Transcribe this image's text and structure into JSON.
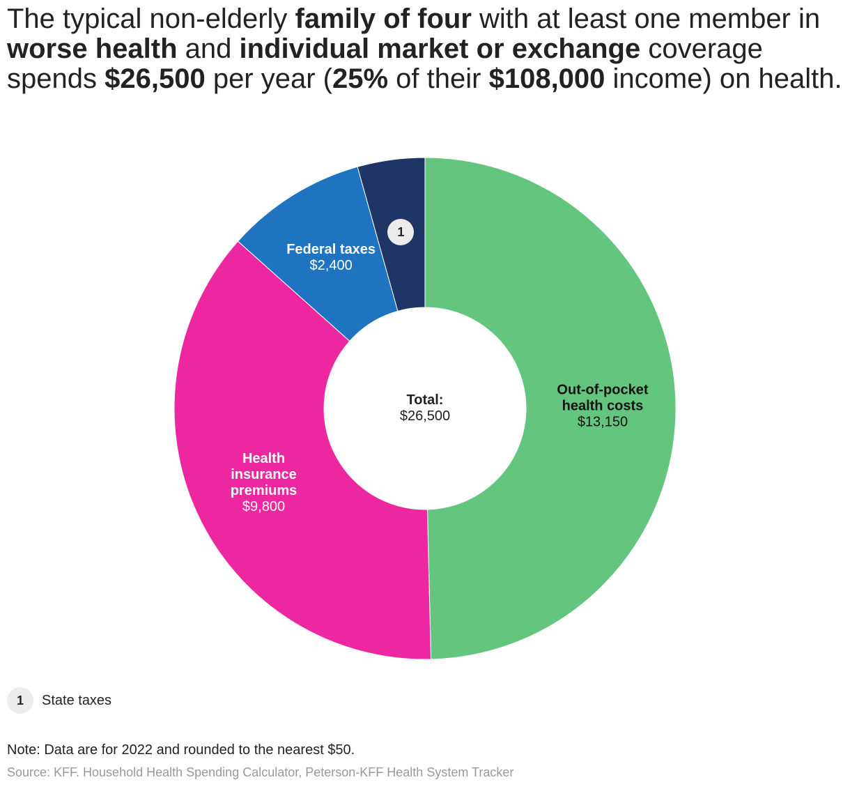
{
  "chart_data": {
    "type": "donut",
    "title": [
      {
        "text": "The typical non-elderly ",
        "bold": false
      },
      {
        "text": "family of four",
        "bold": true
      },
      {
        "text": " with at least one member in ",
        "bold": false
      },
      {
        "text": "worse health",
        "bold": true
      },
      {
        "text": " and ",
        "bold": false
      },
      {
        "text": "individual market or exchange",
        "bold": true
      },
      {
        "text": " coverage spends ",
        "bold": false
      },
      {
        "text": "$26,500",
        "bold": true
      },
      {
        "text": " per year (",
        "bold": false
      },
      {
        "text": "25%",
        "bold": true
      },
      {
        "text": " of their ",
        "bold": false
      },
      {
        "text": "$108,000",
        "bold": true
      },
      {
        "text": " income) on health.",
        "bold": false
      }
    ],
    "categories": [
      "Out-of-pocket health costs",
      "Health insurance premiums",
      "Federal taxes",
      "State taxes"
    ],
    "values": [
      13150,
      9800,
      2400,
      1150
    ],
    "value_labels": [
      "$13,150",
      "$9,800",
      "$2,400",
      null
    ],
    "markers": [
      null,
      null,
      null,
      "1"
    ],
    "colors": [
      "#64c57e",
      "#ec27a0",
      "#1f74c2",
      "#1f3566"
    ],
    "total": {
      "label": "Total:",
      "value": 26500,
      "value_label": "$26,500"
    },
    "note": "Note: Data are for 2022 and rounded to the nearest $50.",
    "source": "Source: KFF. Household Health Spending Calculator, Peterson-KFF Health System Tracker"
  }
}
